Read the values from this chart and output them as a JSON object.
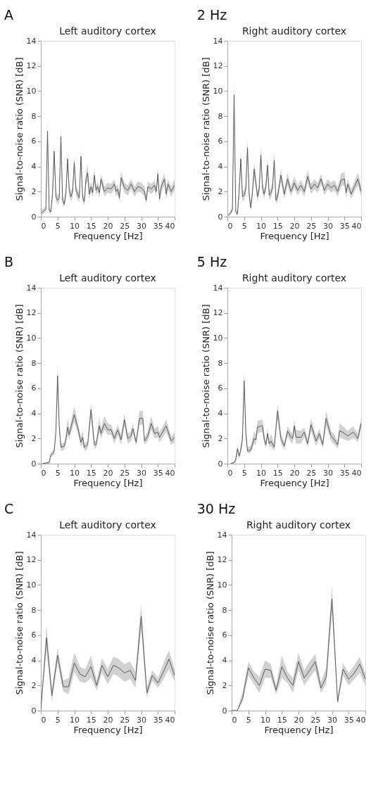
{
  "chart_data": [
    {
      "type": "line",
      "title": "Left auditory cortex",
      "annotations": [
        "A"
      ],
      "xlabel": "Frequency [Hz]",
      "ylabel": "Signal-to-noise ratio (SNR) [dB]",
      "xlim": [
        0,
        40
      ],
      "ylim": [
        0,
        14
      ],
      "xticks": [
        0,
        5,
        10,
        15,
        20,
        25,
        30,
        35,
        40
      ],
      "yticks": [
        0,
        2,
        4,
        6,
        8,
        10,
        12,
        14
      ],
      "grid": false,
      "series": [
        {
          "color": "#5a5a5a",
          "x": [
            0.25,
            1,
            1.5,
            2,
            2.5,
            3,
            3.5,
            4,
            4.5,
            5,
            5.5,
            6,
            6.5,
            7,
            7.5,
            8,
            8.5,
            9,
            9.5,
            10,
            10.5,
            11,
            11.5,
            12,
            12.5,
            13,
            13.5,
            14,
            14.5,
            15,
            15.5,
            16,
            16.5,
            17,
            17.5,
            18,
            19,
            20,
            21,
            22,
            22.5,
            23,
            23.5,
            24,
            25,
            26,
            27,
            28,
            29,
            30,
            31,
            31.5,
            32,
            33,
            34,
            34.5,
            35,
            35.5,
            36,
            37,
            37.5,
            38,
            39,
            40
          ],
          "values": [
            0.3,
            0.5,
            0.6,
            6.8,
            0.5,
            0.4,
            1.8,
            5.2,
            1.6,
            1.3,
            1.5,
            6.4,
            1.3,
            1.0,
            1.9,
            4.6,
            2.1,
            1.6,
            2.0,
            4.3,
            2.1,
            1.8,
            1.5,
            4.8,
            1.5,
            1.2,
            3.0,
            3.5,
            1.8,
            2.4,
            1.9,
            3.3,
            2.1,
            2.4,
            1.9,
            3.0,
            2.0,
            2.3,
            2.2,
            2.6,
            2.0,
            2.2,
            1.5,
            3.1,
            2.3,
            2.1,
            2.6,
            2.0,
            2.4,
            2.3,
            2.0,
            1.3,
            2.4,
            2.2,
            2.5,
            2.0,
            3.4,
            1.4,
            2.4,
            3.0,
            1.8,
            2.6,
            2.0,
            2.5
          ],
          "lower": [
            0.1,
            0.3,
            0.4,
            5.9,
            0.3,
            0.2,
            1.4,
            4.5,
            1.2,
            1.0,
            1.1,
            5.6,
            0.9,
            0.8,
            1.5,
            3.9,
            1.7,
            1.2,
            1.6,
            3.7,
            1.7,
            1.4,
            1.1,
            4.2,
            1.1,
            0.9,
            2.5,
            2.8,
            1.4,
            2.0,
            1.5,
            2.8,
            1.7,
            2.0,
            1.5,
            2.6,
            1.6,
            1.9,
            1.8,
            2.2,
            1.6,
            1.8,
            1.1,
            2.7,
            1.9,
            1.7,
            2.2,
            1.6,
            2.0,
            1.9,
            1.6,
            1.0,
            2.0,
            1.8,
            2.1,
            1.6,
            2.9,
            1.1,
            2.0,
            2.5,
            1.4,
            2.2,
            1.6,
            2.1
          ],
          "upper": [
            0.5,
            0.7,
            0.8,
            7.7,
            0.7,
            0.6,
            2.3,
            5.9,
            2.0,
            1.7,
            1.9,
            7.1,
            1.7,
            1.3,
            2.3,
            5.3,
            2.5,
            2.0,
            2.4,
            4.9,
            2.5,
            2.2,
            1.9,
            5.4,
            1.9,
            1.6,
            3.5,
            4.2,
            2.2,
            2.8,
            2.3,
            3.9,
            2.5,
            2.8,
            2.3,
            3.4,
            2.4,
            2.7,
            2.6,
            3.0,
            2.4,
            2.6,
            1.9,
            3.6,
            2.7,
            2.5,
            3.0,
            2.4,
            2.8,
            2.7,
            2.4,
            1.7,
            2.8,
            2.6,
            2.9,
            2.4,
            3.9,
            1.8,
            2.8,
            3.5,
            2.2,
            3.0,
            2.4,
            3.0
          ]
        }
      ]
    },
    {
      "type": "line",
      "title": "Right auditory cortex",
      "annotations": [
        "2 Hz"
      ],
      "xlabel": "Frequency [Hz]",
      "ylabel": "Signal-to-noise ratio (SNR) [dB]",
      "xlim": [
        0,
        40
      ],
      "ylim": [
        0,
        14
      ],
      "xticks": [
        0,
        5,
        10,
        15,
        20,
        25,
        30,
        35,
        40
      ],
      "yticks": [
        0,
        2,
        4,
        6,
        8,
        10,
        12,
        14
      ],
      "grid": false,
      "series": [
        {
          "color": "#5a5a5a",
          "x": [
            0.25,
            1,
            1.5,
            2,
            2.5,
            3,
            3.5,
            4,
            4.5,
            5,
            5.5,
            6,
            6.5,
            7,
            7.5,
            8,
            8.5,
            9,
            9.5,
            10,
            10.5,
            11,
            11.5,
            12,
            12.5,
            13,
            13.5,
            14,
            14.5,
            15,
            16,
            17,
            18,
            19,
            20,
            21,
            22,
            23,
            24,
            25,
            26,
            27,
            28,
            29,
            30,
            31,
            32,
            33,
            34,
            35,
            35.5,
            36,
            37,
            38,
            39,
            40
          ],
          "values": [
            0.1,
            0.3,
            0.6,
            9.7,
            0.4,
            0.2,
            2.0,
            4.6,
            1.6,
            1.7,
            2.2,
            5.5,
            1.8,
            0.7,
            2.0,
            3.8,
            2.7,
            1.6,
            2.2,
            4.9,
            2.3,
            1.8,
            2.4,
            4.1,
            1.7,
            1.9,
            2.3,
            4.5,
            1.3,
            1.6,
            3.3,
            1.8,
            3.0,
            2.0,
            2.7,
            2.1,
            2.5,
            2.0,
            3.2,
            2.2,
            2.6,
            2.3,
            3.0,
            2.1,
            2.6,
            2.3,
            2.5,
            2.0,
            2.9,
            3.0,
            1.9,
            2.6,
            1.8,
            2.4,
            3.0,
            2.0
          ],
          "lower": [
            0.0,
            0.2,
            0.4,
            8.6,
            0.2,
            0.1,
            1.5,
            3.9,
            1.2,
            1.3,
            1.8,
            4.8,
            1.4,
            0.5,
            1.6,
            3.2,
            2.3,
            1.2,
            1.8,
            4.3,
            1.9,
            1.4,
            2.0,
            3.5,
            1.3,
            1.5,
            1.9,
            3.8,
            1.0,
            1.2,
            2.8,
            1.4,
            2.5,
            1.6,
            2.3,
            1.7,
            2.1,
            1.6,
            2.7,
            1.8,
            2.2,
            1.9,
            2.6,
            1.7,
            2.2,
            1.9,
            2.1,
            1.6,
            2.4,
            2.5,
            1.5,
            2.2,
            1.4,
            2.0,
            2.5,
            1.6
          ],
          "upper": [
            0.2,
            0.5,
            0.8,
            10.8,
            0.6,
            0.4,
            2.5,
            5.3,
            2.0,
            2.1,
            2.6,
            6.2,
            2.2,
            1.0,
            2.4,
            4.4,
            3.2,
            2.0,
            2.6,
            5.6,
            2.7,
            2.2,
            2.8,
            4.7,
            2.1,
            2.3,
            2.7,
            5.2,
            1.7,
            2.0,
            3.8,
            2.2,
            3.5,
            2.4,
            3.2,
            2.5,
            2.9,
            2.4,
            3.7,
            2.6,
            3.0,
            2.7,
            3.4,
            2.5,
            3.0,
            2.7,
            2.9,
            2.4,
            3.4,
            3.6,
            2.3,
            3.0,
            2.2,
            2.8,
            3.5,
            2.5
          ]
        }
      ]
    },
    {
      "type": "line",
      "title": "Left auditory cortex",
      "annotations": [
        "B"
      ],
      "xlabel": "Frequency [Hz]",
      "ylabel": "Signal-to-noise ratio (SNR) [dB]",
      "xlim": [
        0,
        40
      ],
      "ylim": [
        0,
        14
      ],
      "xticks": [
        0,
        5,
        10,
        15,
        20,
        25,
        30,
        35,
        40
      ],
      "yticks": [
        0,
        2,
        4,
        6,
        8,
        10,
        12,
        14
      ],
      "grid": false,
      "series": [
        {
          "color": "#5a5a5a",
          "x": [
            0.5,
            1.5,
            2.5,
            3,
            3.5,
            4,
            4.5,
            5,
            5.5,
            6,
            7,
            7.5,
            8,
            8.5,
            9,
            10,
            11,
            12,
            12.5,
            13,
            14,
            15,
            16,
            16.5,
            17.5,
            18,
            19,
            20,
            21,
            22,
            23,
            24,
            25,
            26,
            27,
            27.5,
            28.5,
            29.5,
            30.5,
            31,
            32,
            33,
            34,
            35,
            35.5,
            37.5,
            39,
            40
          ],
          "values": [
            0.0,
            0.05,
            0.1,
            0.7,
            0.8,
            1.0,
            2.5,
            7.0,
            3.0,
            1.3,
            1.4,
            1.9,
            2.9,
            2.3,
            2.9,
            3.9,
            2.9,
            1.7,
            2.1,
            1.3,
            1.5,
            4.3,
            1.5,
            1.5,
            3.0,
            2.4,
            3.2,
            2.7,
            2.7,
            2.0,
            2.7,
            1.9,
            3.5,
            2.0,
            2.2,
            2.8,
            1.7,
            3.6,
            3.6,
            1.8,
            2.2,
            3.2,
            2.4,
            2.5,
            2.1,
            3.0,
            1.8,
            2.1
          ],
          "lower": [
            0.0,
            0.0,
            0.0,
            0.5,
            0.6,
            0.8,
            2.2,
            6.2,
            2.5,
            1.0,
            1.1,
            1.6,
            2.3,
            1.9,
            2.5,
            3.3,
            2.5,
            1.3,
            1.6,
            1.0,
            1.2,
            3.7,
            1.2,
            1.2,
            2.5,
            2.0,
            2.7,
            2.3,
            2.3,
            1.6,
            2.3,
            1.5,
            3.0,
            1.6,
            1.8,
            2.4,
            1.4,
            3.1,
            3.1,
            1.5,
            1.8,
            2.7,
            2.0,
            2.1,
            1.7,
            2.5,
            1.5,
            1.7
          ],
          "upper": [
            0.05,
            0.1,
            0.2,
            0.9,
            1.0,
            1.2,
            2.9,
            7.9,
            3.4,
            1.6,
            1.7,
            2.3,
            3.7,
            2.7,
            3.3,
            4.6,
            3.3,
            2.1,
            2.7,
            1.6,
            1.8,
            4.9,
            1.8,
            1.8,
            3.7,
            2.8,
            3.8,
            3.2,
            3.1,
            2.4,
            3.1,
            2.3,
            4.0,
            2.4,
            2.6,
            3.2,
            2.0,
            4.2,
            4.2,
            2.1,
            2.6,
            3.8,
            2.8,
            3.0,
            2.5,
            3.5,
            2.1,
            2.5
          ]
        }
      ]
    },
    {
      "type": "line",
      "title": "Right auditory cortex",
      "annotations": [
        "5 Hz"
      ],
      "xlabel": "Frequency [Hz]",
      "ylabel": "Signal-to-noise ratio (SNR) [dB]",
      "xlim": [
        0,
        40
      ],
      "ylim": [
        0,
        14
      ],
      "xticks": [
        0,
        5,
        10,
        15,
        20,
        25,
        30,
        35,
        40
      ],
      "yticks": [
        0,
        2,
        4,
        6,
        8,
        10,
        12,
        14
      ],
      "grid": false,
      "series": [
        {
          "color": "#5a5a5a",
          "x": [
            1,
            2,
            2.5,
            3,
            3.5,
            4,
            4.5,
            5,
            5.5,
            6,
            7,
            8,
            8.5,
            9,
            10,
            10.5,
            11,
            11.5,
            12,
            12.5,
            13,
            14,
            15,
            16,
            17,
            18,
            19,
            19.5,
            20,
            20.5,
            22,
            23,
            24,
            25,
            26.5,
            27.5,
            28.5,
            29.5,
            31,
            32,
            33,
            33.5,
            34.5,
            36,
            37.5,
            38,
            39,
            40
          ],
          "values": [
            0.0,
            0.1,
            0.3,
            1.2,
            0.6,
            1.1,
            2.0,
            6.6,
            2.5,
            1.0,
            1.1,
            2.0,
            1.9,
            2.9,
            3.0,
            3.0,
            2.0,
            1.5,
            2.4,
            1.6,
            1.8,
            1.3,
            4.2,
            2.0,
            1.4,
            2.6,
            2.1,
            2.0,
            3.0,
            2.1,
            2.1,
            2.5,
            1.6,
            3.1,
            1.8,
            2.4,
            1.5,
            3.6,
            2.2,
            1.9,
            1.5,
            2.6,
            2.5,
            2.2,
            2.5,
            2.4,
            2.0,
            3.2
          ],
          "lower": [
            0.0,
            0.0,
            0.1,
            0.9,
            0.4,
            0.8,
            1.6,
            5.8,
            2.0,
            0.8,
            0.9,
            1.6,
            1.5,
            2.4,
            2.5,
            2.5,
            1.6,
            1.2,
            2.0,
            1.3,
            1.4,
            1.0,
            3.6,
            1.6,
            1.1,
            2.2,
            1.7,
            1.6,
            2.6,
            1.6,
            1.6,
            2.1,
            1.3,
            2.6,
            1.4,
            2.0,
            1.2,
            3.0,
            1.8,
            1.5,
            1.2,
            2.1,
            2.0,
            1.8,
            2.0,
            2.0,
            1.7,
            2.8
          ],
          "upper": [
            0.05,
            0.2,
            0.5,
            1.5,
            0.8,
            1.4,
            2.5,
            7.4,
            3.0,
            1.3,
            1.4,
            2.6,
            2.3,
            3.4,
            3.5,
            3.5,
            2.4,
            1.8,
            2.8,
            1.9,
            2.4,
            1.6,
            4.8,
            2.4,
            1.7,
            3.0,
            2.5,
            2.4,
            3.5,
            2.7,
            2.6,
            2.9,
            1.9,
            3.6,
            2.2,
            2.8,
            1.8,
            4.2,
            2.6,
            2.3,
            1.8,
            3.2,
            3.0,
            2.6,
            3.0,
            2.8,
            2.4,
            3.6
          ]
        }
      ]
    },
    {
      "type": "line",
      "title": "Left auditory cortex",
      "annotations": [
        "C"
      ],
      "xlabel": "Frequency [Hz]",
      "ylabel": "Signal-to-noise ratio (SNR) [dB]",
      "xlim": [
        0,
        40
      ],
      "ylim": [
        0,
        14
      ],
      "xticks": [
        0,
        5,
        10,
        15,
        20,
        25,
        30,
        35,
        40
      ],
      "yticks": [
        0,
        2,
        4,
        6,
        8,
        10,
        12,
        14
      ],
      "grid": false,
      "series": [
        {
          "color": "#5a5a5a",
          "x": [
            0,
            1.7,
            3.3,
            5,
            6.7,
            8.3,
            10,
            11.7,
            13.3,
            15,
            16.7,
            18.3,
            20,
            21.7,
            23.3,
            25,
            26.7,
            28.3,
            30,
            31.7,
            33.3,
            35,
            36.7,
            38.3,
            40
          ],
          "values": [
            0.1,
            5.8,
            1.2,
            4.4,
            1.9,
            1.9,
            3.8,
            2.9,
            2.7,
            3.5,
            2.0,
            3.6,
            2.7,
            3.6,
            3.4,
            3.0,
            3.2,
            2.4,
            7.5,
            1.4,
            2.8,
            2.2,
            3.1,
            4.1,
            2.8
          ],
          "lower": [
            0.0,
            4.8,
            0.7,
            3.8,
            1.5,
            1.3,
            3.1,
            2.3,
            2.2,
            2.6,
            1.6,
            3.0,
            2.1,
            2.9,
            2.7,
            2.3,
            2.5,
            1.8,
            6.5,
            1.0,
            2.4,
            1.8,
            2.5,
            3.3,
            2.3
          ],
          "upper": [
            0.2,
            6.8,
            1.7,
            5.0,
            2.4,
            2.6,
            4.6,
            3.5,
            3.3,
            4.4,
            2.4,
            4.2,
            3.3,
            4.3,
            4.1,
            3.7,
            3.9,
            3.1,
            8.5,
            1.9,
            3.2,
            2.6,
            3.8,
            4.8,
            3.3
          ]
        }
      ]
    },
    {
      "type": "line",
      "title": "Right auditory cortex",
      "annotations": [
        "30 Hz"
      ],
      "xlabel": "Frequency [Hz]",
      "ylabel": "Signal-to-noise ratio (SNR) [dB]",
      "xlim": [
        0,
        40
      ],
      "ylim": [
        0,
        14
      ],
      "xticks": [
        0,
        5,
        10,
        15,
        20,
        25,
        30,
        35,
        40
      ],
      "yticks": [
        0,
        2,
        4,
        6,
        8,
        10,
        12,
        14
      ],
      "grid": false,
      "series": [
        {
          "color": "#5a5a5a",
          "x": [
            0,
            1.7,
            3.3,
            5,
            6.7,
            8.3,
            10,
            11.7,
            13.3,
            15,
            16.7,
            18.3,
            20,
            21.7,
            23.3,
            25,
            26.7,
            28.3,
            30,
            31.7,
            33.3,
            35,
            36.7,
            38.3,
            40
          ],
          "values": [
            0.0,
            0.0,
            1.0,
            3.4,
            2.6,
            2.0,
            3.3,
            3.2,
            1.6,
            3.5,
            2.6,
            2.0,
            3.9,
            2.6,
            3.2,
            3.9,
            1.8,
            2.7,
            8.9,
            0.7,
            3.3,
            2.5,
            3.0,
            3.7,
            2.5
          ],
          "lower": [
            0.0,
            0.0,
            0.7,
            2.8,
            2.1,
            1.4,
            2.6,
            2.6,
            1.3,
            2.6,
            2.2,
            1.4,
            3.2,
            2.0,
            2.6,
            3.2,
            1.4,
            2.1,
            7.8,
            0.5,
            2.8,
            2.0,
            2.5,
            3.0,
            2.0
          ],
          "upper": [
            0.0,
            0.1,
            1.5,
            3.9,
            3.1,
            2.7,
            4.0,
            3.7,
            2.0,
            4.4,
            3.1,
            2.6,
            4.6,
            3.2,
            3.9,
            4.5,
            2.3,
            3.4,
            10.0,
            1.0,
            3.8,
            3.0,
            3.6,
            4.3,
            3.0
          ]
        }
      ]
    }
  ]
}
